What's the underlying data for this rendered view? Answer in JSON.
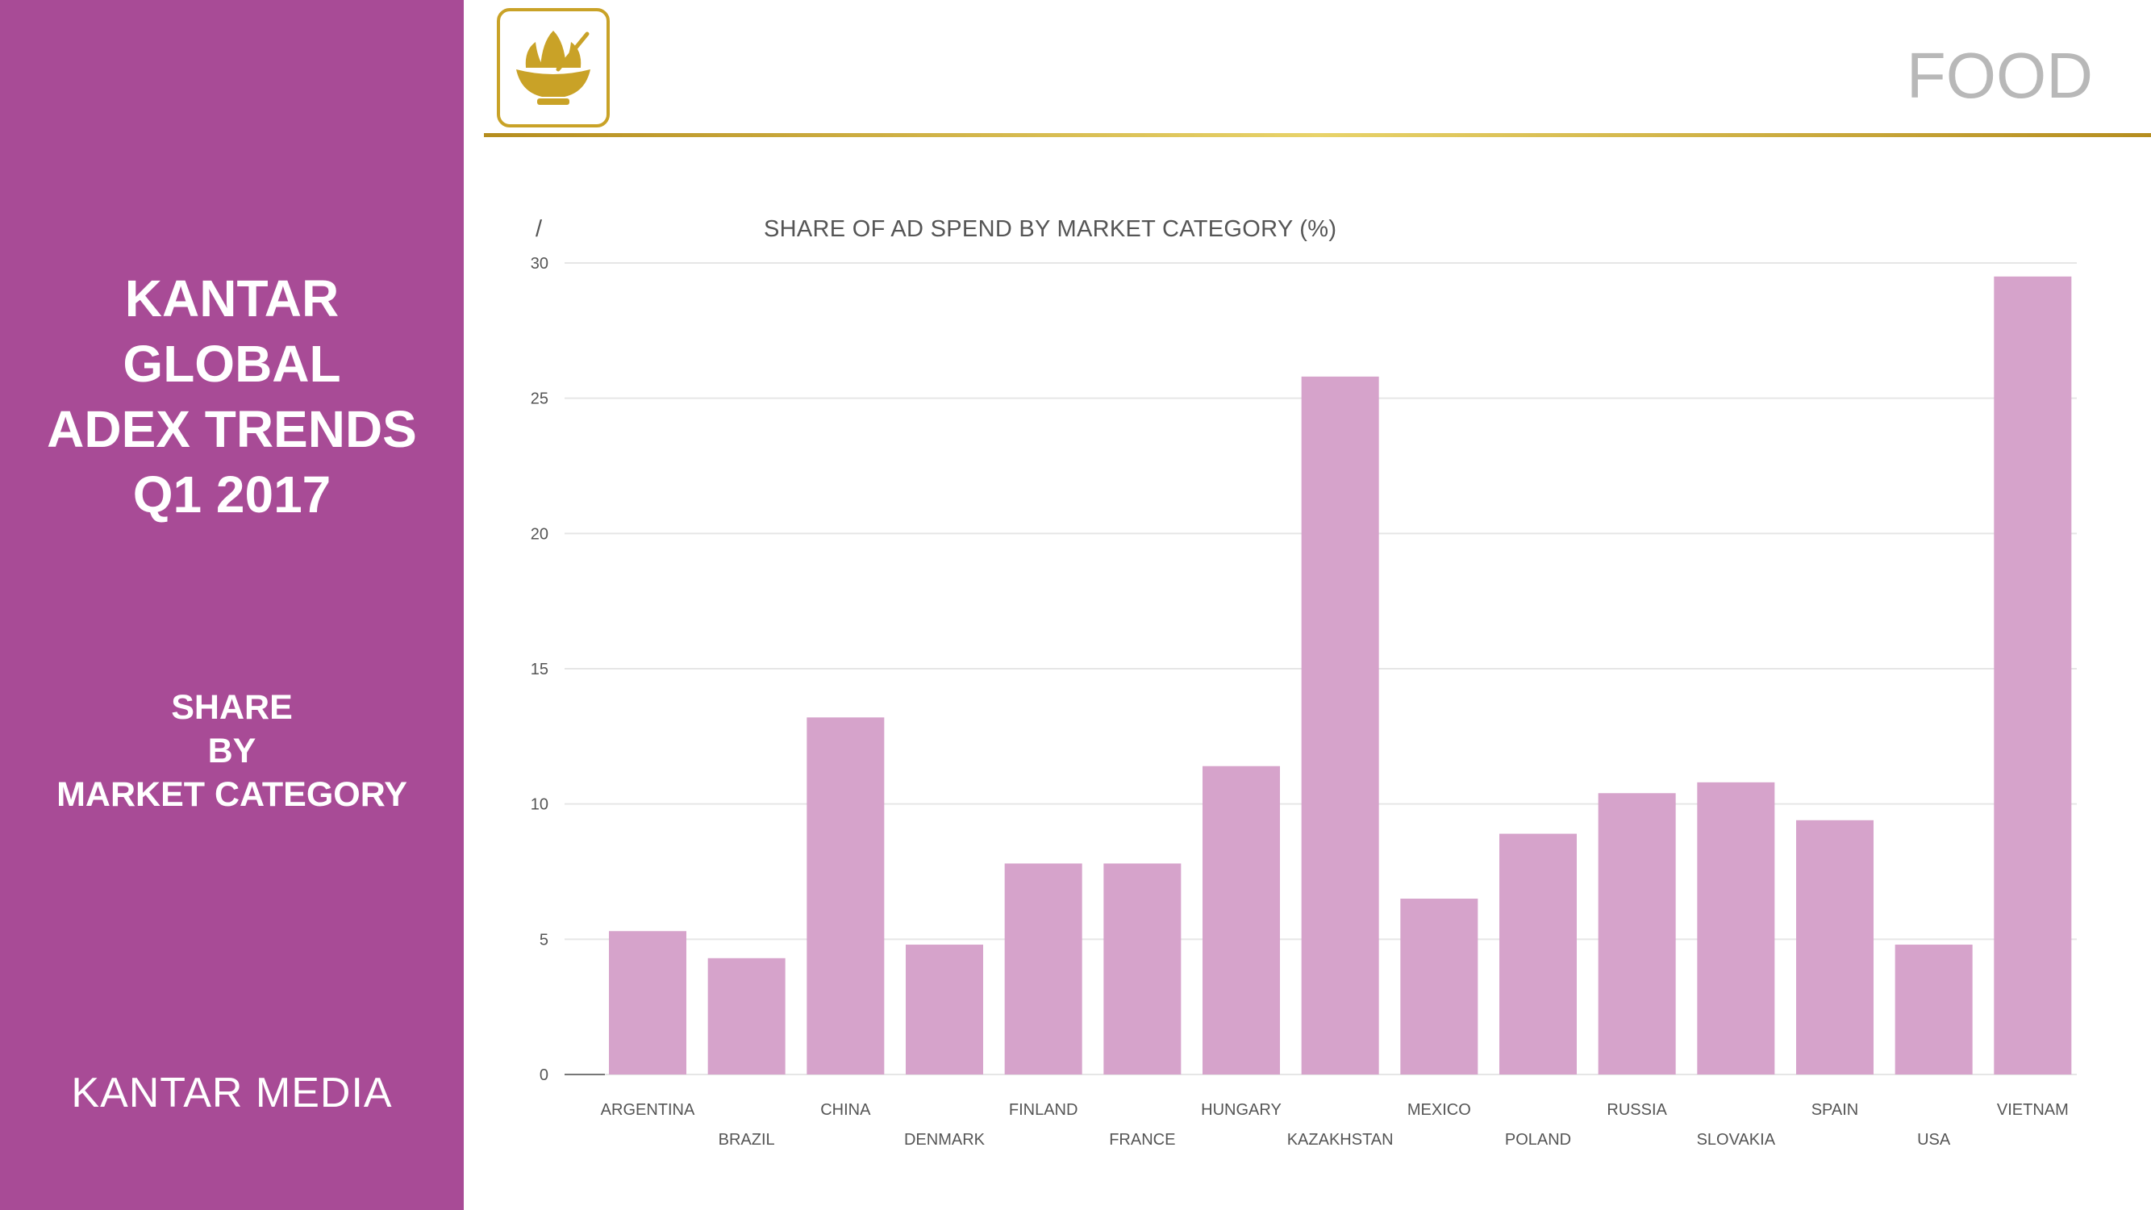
{
  "sidebar": {
    "report_title_lines": [
      "KANTAR",
      "GLOBAL",
      "ADEX TRENDS",
      "Q1 2017"
    ],
    "subtitle_lines": [
      "SHARE",
      "BY",
      "MARKET CATEGORY"
    ],
    "brand": "KANTAR MEDIA"
  },
  "header": {
    "category": "FOOD",
    "icon": "food-bowl-icon"
  },
  "colors": {
    "sidebar": "#a84b96",
    "bar": "#d6a3cb",
    "gold": "#c9a227"
  },
  "chart_data": {
    "type": "bar",
    "title": "SHARE OF AD SPEND BY MARKET CATEGORY (%)",
    "corner_mark": "/",
    "categories": [
      "ARGENTINA",
      "BRAZIL",
      "CHINA",
      "DENMARK",
      "FINLAND",
      "FRANCE",
      "HUNGARY",
      "KAZAKHSTAN",
      "MEXICO",
      "POLAND",
      "RUSSIA",
      "SLOVAKIA",
      "SPAIN",
      "USA",
      "VIETNAM"
    ],
    "values": [
      5.3,
      4.3,
      13.2,
      4.8,
      7.8,
      7.8,
      11.4,
      25.8,
      6.5,
      8.9,
      10.4,
      10.8,
      9.4,
      4.8,
      29.5
    ],
    "ylim": [
      0,
      30
    ],
    "yticks": [
      0,
      5,
      10,
      15,
      20,
      25,
      30
    ],
    "grid": true,
    "xlabel": "",
    "ylabel": ""
  }
}
